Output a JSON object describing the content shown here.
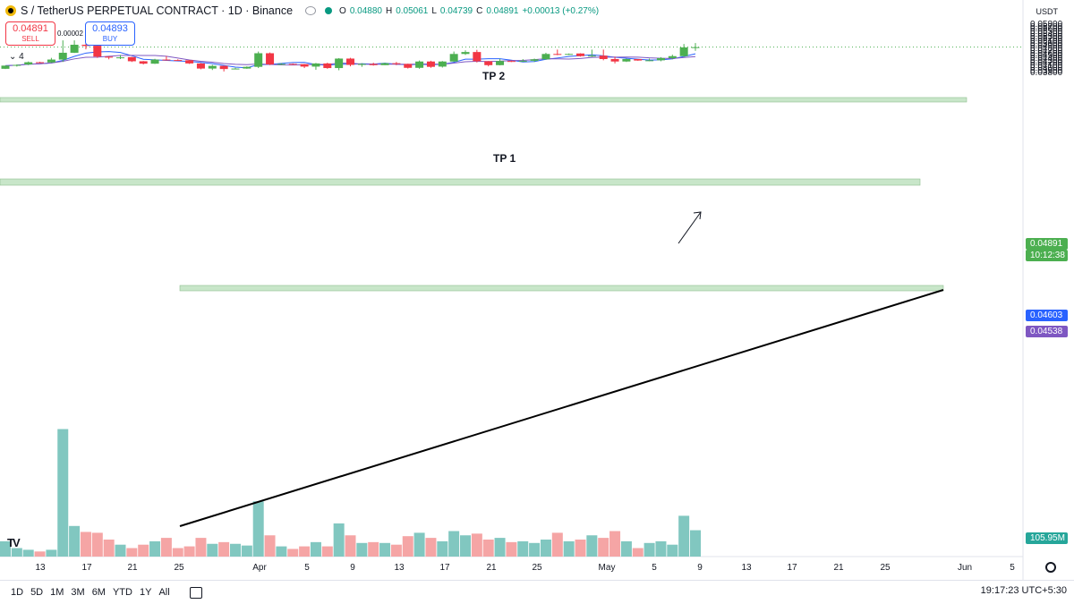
{
  "header": {
    "title": "S / TetherUS PERPETUAL CONTRACT · 1D · Binance",
    "ohlc": [
      {
        "k": "O",
        "v": "0.04880"
      },
      {
        "k": "H",
        "v": "0.05061"
      },
      {
        "k": "L",
        "v": "0.04739"
      },
      {
        "k": "C",
        "v": "0.04891"
      },
      {
        "k": "",
        "v": "+0.00013 (+0.27%)"
      }
    ]
  },
  "trade": {
    "sell_price": "0.04891",
    "sell_label": "SELL",
    "spread": "0.00002",
    "buy_price": "0.04893",
    "buy_label": "BUY"
  },
  "indicators_toggle": "⌄ 4",
  "currency": "USDT",
  "annotations": {
    "tp1": "TP 1",
    "tp2": "TP 2"
  },
  "price_tags": {
    "last_price": "0.04891",
    "countdown": "10:12:38",
    "ma_fast": "0.04603",
    "ma_slow": "0.04538",
    "volume": "105.95M"
  },
  "colors": {
    "up": "#4caf50",
    "down": "#f23645",
    "vol_up": "#81c7c0",
    "vol_down": "#f5a5a5",
    "ma_fast": "#2962ff",
    "ma_slow": "#7e57c2",
    "zone": "#c8e6c9"
  },
  "bottom": {
    "ranges": [
      "1D",
      "5D",
      "1M",
      "3M",
      "6M",
      "YTD",
      "1Y",
      "All"
    ],
    "clock": "19:17:23 UTC+5:30"
  },
  "chart_data": {
    "type": "candlestick",
    "y_ticks": [
      "0.05800",
      "0.05700",
      "0.05600",
      "0.05500",
      "0.05400",
      "0.05300",
      "0.05200",
      "0.05100",
      "0.05000",
      "0.04900",
      "0.04800",
      "0.04700",
      "0.04600",
      "0.04500",
      "0.04400",
      "0.04300",
      "0.04200",
      "0.04100",
      "0.04000",
      "0.03900",
      "0.03800"
    ],
    "x_ticks": [
      "13",
      "17",
      "21",
      "25",
      "Apr",
      "5",
      "9",
      "13",
      "17",
      "21",
      "25",
      "May",
      "5",
      "9",
      "13",
      "17",
      "21",
      "25",
      "Jun",
      "5"
    ],
    "ylim": [
      0.0375,
      0.0583
    ],
    "candles": [
      {
        "o": 0.04,
        "h": 0.0413,
        "l": 0.0399,
        "c": 0.0413,
        "v": 18
      },
      {
        "o": 0.0413,
        "h": 0.0418,
        "l": 0.0409,
        "c": 0.0416,
        "v": 10
      },
      {
        "o": 0.0418,
        "h": 0.043,
        "l": 0.0415,
        "c": 0.0427,
        "v": 8
      },
      {
        "o": 0.0427,
        "h": 0.0429,
        "l": 0.0423,
        "c": 0.0426,
        "v": 6
      },
      {
        "o": 0.0426,
        "h": 0.0445,
        "l": 0.0424,
        "c": 0.0438,
        "v": 8
      },
      {
        "o": 0.0438,
        "h": 0.0517,
        "l": 0.0428,
        "c": 0.0466,
        "v": 150
      },
      {
        "o": 0.0466,
        "h": 0.0517,
        "l": 0.0465,
        "c": 0.0499,
        "v": 36
      },
      {
        "o": 0.0499,
        "h": 0.0502,
        "l": 0.048,
        "c": 0.0494,
        "v": 29
      },
      {
        "o": 0.0495,
        "h": 0.0496,
        "l": 0.0445,
        "c": 0.045,
        "v": 28
      },
      {
        "o": 0.045,
        "h": 0.0452,
        "l": 0.0439,
        "c": 0.0446,
        "v": 20
      },
      {
        "o": 0.0447,
        "h": 0.0457,
        "l": 0.044,
        "c": 0.0447,
        "v": 14
      },
      {
        "o": 0.0448,
        "h": 0.0449,
        "l": 0.0428,
        "c": 0.0431,
        "v": 10
      },
      {
        "o": 0.0431,
        "h": 0.0432,
        "l": 0.0418,
        "c": 0.0421,
        "v": 14
      },
      {
        "o": 0.0421,
        "h": 0.0441,
        "l": 0.042,
        "c": 0.0438,
        "v": 18
      },
      {
        "o": 0.0438,
        "h": 0.0453,
        "l": 0.0434,
        "c": 0.0436,
        "v": 22
      },
      {
        "o": 0.0436,
        "h": 0.0439,
        "l": 0.0433,
        "c": 0.0435,
        "v": 10
      },
      {
        "o": 0.0435,
        "h": 0.0436,
        "l": 0.042,
        "c": 0.0422,
        "v": 12
      },
      {
        "o": 0.0422,
        "h": 0.0424,
        "l": 0.0398,
        "c": 0.0401,
        "v": 22
      },
      {
        "o": 0.0401,
        "h": 0.0416,
        "l": 0.0395,
        "c": 0.0412,
        "v": 15
      },
      {
        "o": 0.0412,
        "h": 0.0413,
        "l": 0.0389,
        "c": 0.0399,
        "v": 17
      },
      {
        "o": 0.0399,
        "h": 0.0404,
        "l": 0.0398,
        "c": 0.0401,
        "v": 15
      },
      {
        "o": 0.0401,
        "h": 0.041,
        "l": 0.04,
        "c": 0.0408,
        "v": 13
      },
      {
        "o": 0.0408,
        "h": 0.0471,
        "l": 0.0403,
        "c": 0.0464,
        "v": 65
      },
      {
        "o": 0.0464,
        "h": 0.0467,
        "l": 0.0415,
        "c": 0.0418,
        "v": 25
      },
      {
        "o": 0.0418,
        "h": 0.0423,
        "l": 0.0417,
        "c": 0.042,
        "v": 12
      },
      {
        "o": 0.042,
        "h": 0.0422,
        "l": 0.0418,
        "c": 0.0419,
        "v": 9
      },
      {
        "o": 0.0419,
        "h": 0.042,
        "l": 0.0403,
        "c": 0.0409,
        "v": 12
      },
      {
        "o": 0.0409,
        "h": 0.0424,
        "l": 0.0396,
        "c": 0.0422,
        "v": 17
      },
      {
        "o": 0.0422,
        "h": 0.0425,
        "l": 0.04,
        "c": 0.0403,
        "v": 12
      },
      {
        "o": 0.0403,
        "h": 0.0444,
        "l": 0.0394,
        "c": 0.0442,
        "v": 39
      },
      {
        "o": 0.0442,
        "h": 0.0445,
        "l": 0.041,
        "c": 0.0416,
        "v": 25
      },
      {
        "o": 0.0416,
        "h": 0.0423,
        "l": 0.0408,
        "c": 0.042,
        "v": 16
      },
      {
        "o": 0.042,
        "h": 0.0425,
        "l": 0.0413,
        "c": 0.0415,
        "v": 17
      },
      {
        "o": 0.0415,
        "h": 0.0425,
        "l": 0.0415,
        "c": 0.0423,
        "v": 16
      },
      {
        "o": 0.0423,
        "h": 0.0428,
        "l": 0.0415,
        "c": 0.042,
        "v": 14
      },
      {
        "o": 0.042,
        "h": 0.0421,
        "l": 0.0401,
        "c": 0.0404,
        "v": 24
      },
      {
        "o": 0.0404,
        "h": 0.0434,
        "l": 0.04,
        "c": 0.043,
        "v": 28
      },
      {
        "o": 0.043,
        "h": 0.0433,
        "l": 0.0404,
        "c": 0.0408,
        "v": 22
      },
      {
        "o": 0.0409,
        "h": 0.0432,
        "l": 0.0405,
        "c": 0.043,
        "v": 18
      },
      {
        "o": 0.043,
        "h": 0.0471,
        "l": 0.0428,
        "c": 0.0461,
        "v": 30
      },
      {
        "o": 0.0461,
        "h": 0.0476,
        "l": 0.0457,
        "c": 0.0469,
        "v": 25
      },
      {
        "o": 0.0469,
        "h": 0.0478,
        "l": 0.0426,
        "c": 0.0431,
        "v": 27
      },
      {
        "o": 0.0431,
        "h": 0.0432,
        "l": 0.041,
        "c": 0.0415,
        "v": 20
      },
      {
        "o": 0.0415,
        "h": 0.0441,
        "l": 0.0414,
        "c": 0.0432,
        "v": 22
      },
      {
        "o": 0.0432,
        "h": 0.0434,
        "l": 0.0428,
        "c": 0.043,
        "v": 17
      },
      {
        "o": 0.043,
        "h": 0.044,
        "l": 0.0429,
        "c": 0.0433,
        "v": 18
      },
      {
        "o": 0.0433,
        "h": 0.0442,
        "l": 0.0428,
        "c": 0.0439,
        "v": 16
      },
      {
        "o": 0.0439,
        "h": 0.0466,
        "l": 0.0437,
        "c": 0.0461,
        "v": 20
      },
      {
        "o": 0.0461,
        "h": 0.0479,
        "l": 0.0456,
        "c": 0.0459,
        "v": 28
      },
      {
        "o": 0.0459,
        "h": 0.0463,
        "l": 0.0457,
        "c": 0.0461,
        "v": 18
      },
      {
        "o": 0.0463,
        "h": 0.0464,
        "l": 0.045,
        "c": 0.0452,
        "v": 20
      },
      {
        "o": 0.0452,
        "h": 0.0479,
        "l": 0.0449,
        "c": 0.0454,
        "v": 25
      },
      {
        "o": 0.0454,
        "h": 0.0479,
        "l": 0.0435,
        "c": 0.044,
        "v": 22
      },
      {
        "o": 0.044,
        "h": 0.045,
        "l": 0.0422,
        "c": 0.043,
        "v": 30
      },
      {
        "o": 0.043,
        "h": 0.0442,
        "l": 0.0428,
        "c": 0.044,
        "v": 18
      },
      {
        "o": 0.044,
        "h": 0.044,
        "l": 0.0433,
        "c": 0.0434,
        "v": 10
      },
      {
        "o": 0.0434,
        "h": 0.0442,
        "l": 0.0431,
        "c": 0.0435,
        "v": 16
      },
      {
        "o": 0.0435,
        "h": 0.0448,
        "l": 0.0431,
        "c": 0.0444,
        "v": 18
      },
      {
        "o": 0.0444,
        "h": 0.0458,
        "l": 0.0439,
        "c": 0.0452,
        "v": 14
      },
      {
        "o": 0.0452,
        "h": 0.0502,
        "l": 0.0449,
        "c": 0.0488,
        "v": 48
      },
      {
        "o": 0.0488,
        "h": 0.05061,
        "l": 0.04739,
        "c": 0.04891,
        "v": 31
      }
    ]
  }
}
